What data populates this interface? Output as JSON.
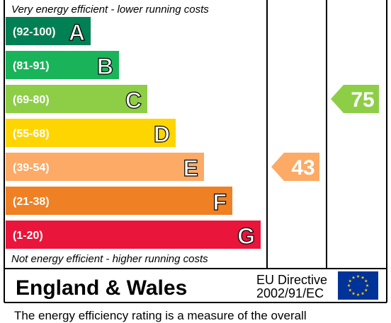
{
  "chart_data": {
    "type": "bar",
    "top_label": "Very energy efficient - lower running costs",
    "bottom_label": "Not energy efficient - higher running costs",
    "bands": [
      {
        "range": "(92-100)",
        "letter": "A",
        "color": "#008054"
      },
      {
        "range": "(81-91)",
        "letter": "B",
        "color": "#19b459"
      },
      {
        "range": "(69-80)",
        "letter": "C",
        "color": "#8dce46"
      },
      {
        "range": "(55-68)",
        "letter": "D",
        "color": "#ffd500"
      },
      {
        "range": "(39-54)",
        "letter": "E",
        "color": "#fcaa65"
      },
      {
        "range": "(21-38)",
        "letter": "F",
        "color": "#ef8023"
      },
      {
        "range": "(1-20)",
        "letter": "G",
        "color": "#e9153b"
      }
    ],
    "ratings": [
      {
        "value": 43,
        "band": "E",
        "color": "#fcaa65"
      },
      {
        "value": 75,
        "band": "C",
        "color": "#8dce46"
      }
    ]
  },
  "footer": {
    "region": "England & Wales",
    "directive_line1": "EU Directive",
    "directive_line2": "2002/91/EC",
    "caption": "The energy efficiency rating is a measure of the overall"
  }
}
